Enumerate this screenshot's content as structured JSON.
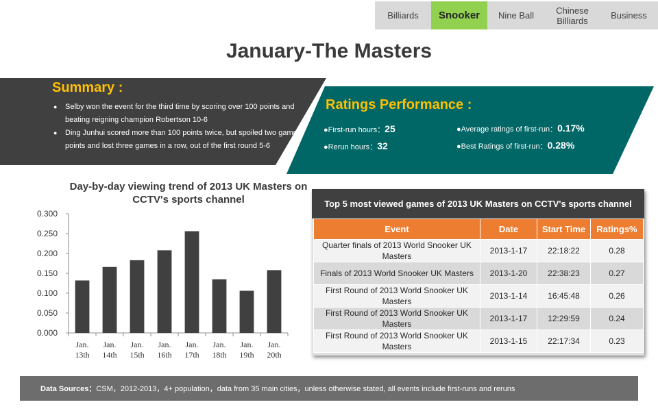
{
  "tabs": [
    {
      "label": "Billiards",
      "active": false
    },
    {
      "label": "Snooker",
      "active": true
    },
    {
      "label": "Nine Ball",
      "active": false
    },
    {
      "label": "Chinese Billiards",
      "active": false
    },
    {
      "label": "Business",
      "active": false
    }
  ],
  "page_title": "January-The Masters",
  "summary": {
    "title": "Summary :",
    "items": [
      "Selby won the event for the third time by scoring over 100 points and beating reigning champion Robertson 10-6",
      "Ding Junhui scored more than 100 points twice, but spoiled two game points and lost three games in a row, out of the first round 5-6"
    ]
  },
  "ratings": {
    "title": "Ratings Performance :",
    "first_run_label": "●First-run hours：",
    "first_run_value": "25",
    "rerun_label": "●Rerun hours：",
    "rerun_value": "32",
    "avg_label": "●Average ratings of first-run：",
    "avg_value": "0.17%",
    "best_label": "●Best Ratings of first-run：",
    "best_value": "0.28%"
  },
  "chart_data": {
    "type": "bar",
    "title": "Day-by-day viewing trend of 2013 UK Masters on CCTV's sports channel",
    "categories": [
      [
        "Jan.",
        "13th"
      ],
      [
        "Jan.",
        "14th"
      ],
      [
        "Jan.",
        "15th"
      ],
      [
        "Jan.",
        "16th"
      ],
      [
        "Jan.",
        "17th"
      ],
      [
        "Jan.",
        "18th"
      ],
      [
        "Jan.",
        "19th"
      ],
      [
        "Jan.",
        "20th"
      ]
    ],
    "values": [
      0.132,
      0.166,
      0.183,
      0.208,
      0.256,
      0.135,
      0.106,
      0.158
    ],
    "ylim": [
      0,
      0.3
    ],
    "yticks": [
      "0.000",
      "0.050",
      "0.100",
      "0.150",
      "0.200",
      "0.250",
      "0.300"
    ],
    "bar_color": "#404040",
    "grid": false
  },
  "table": {
    "title": "Top 5 most viewed games of 2013 UK Masters on CCTV's sports channel",
    "columns": [
      "Event",
      "Date",
      "Start Time",
      "Ratings%"
    ],
    "rows": [
      [
        "Quarter finals of 2013 World Snooker UK Masters",
        "2013-1-17",
        "22:18:22",
        "0.28"
      ],
      [
        "Finals of 2013 World Snooker UK Masters",
        "2013-1-20",
        "22:38:23",
        "0.27"
      ],
      [
        "First Round of 2013 World Snooker UK Masters",
        "2013-1-14",
        "16:45:48",
        "0.26"
      ],
      [
        "First Round of 2013 World Snooker UK Masters",
        "2013-1-17",
        "12:29:59",
        "0.24"
      ],
      [
        "First Round of 2013 World Snooker UK Masters",
        "2013-1-15",
        "22:17:34",
        "0.23"
      ]
    ]
  },
  "footer": {
    "label": "Data Sources：",
    "text": "CSM，2012-2013，4+ population，data from 35 main cities，unless otherwise stated, all events include first-runs and reruns"
  },
  "colors": {
    "active_tab": "#92d050",
    "summary_bg": "#404040",
    "ratings_bg": "#006666",
    "accent_title": "#ffc000",
    "table_header": "#ed7d31"
  }
}
